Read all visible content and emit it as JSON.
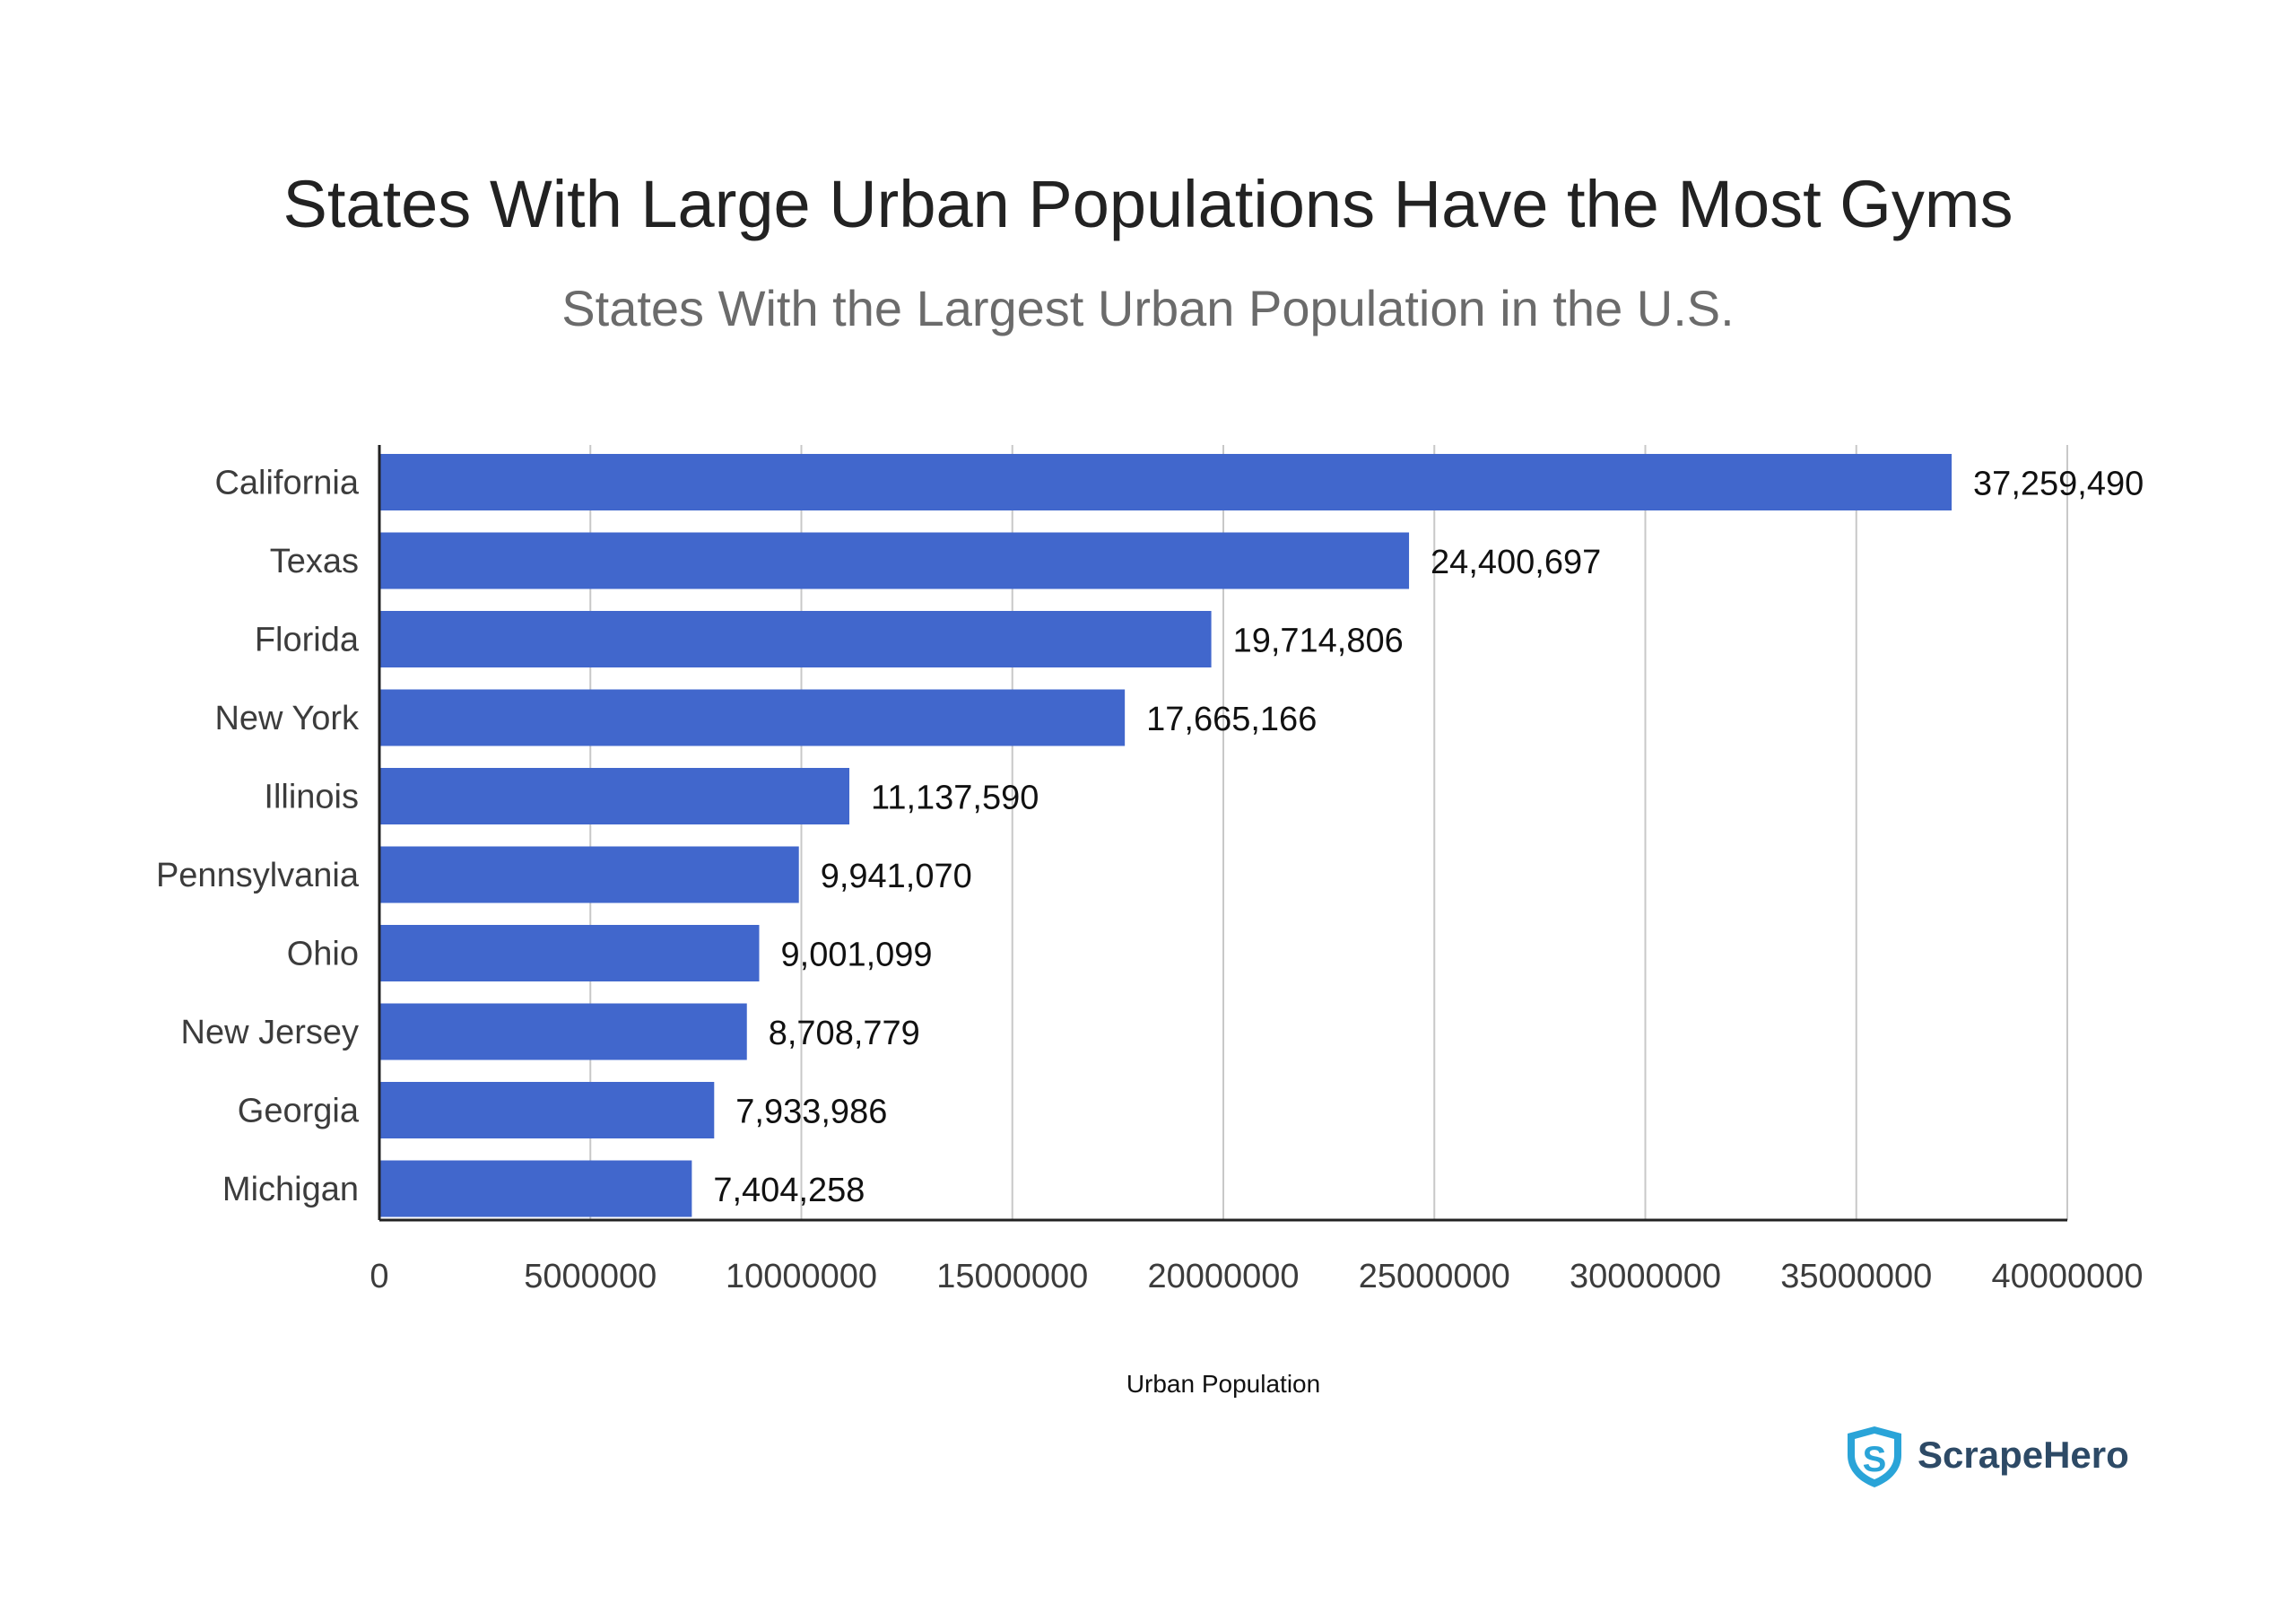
{
  "chart_data": {
    "type": "bar",
    "orientation": "horizontal",
    "title": "States With Large Urban Populations Have the Most Gyms",
    "subtitle": "States With the Largest Urban Population in the U.S.",
    "xlabel": "Urban Population",
    "ylabel": "",
    "xlim": [
      0,
      40000000
    ],
    "x_ticks": [
      "0",
      "5000000",
      "10000000",
      "15000000",
      "20000000",
      "25000000",
      "30000000",
      "35000000",
      "40000000"
    ],
    "x_tick_values": [
      0,
      5000000,
      10000000,
      15000000,
      20000000,
      25000000,
      30000000,
      35000000,
      40000000
    ],
    "grid": "vertical",
    "legend": "none",
    "bar_color": "#4167cc",
    "categories": [
      "California",
      "Texas",
      "Florida",
      "New York",
      "Illinois",
      "Pennsylvania",
      "Ohio",
      "New Jersey",
      "Georgia",
      "Michigan"
    ],
    "values": [
      37259490,
      24400697,
      19714806,
      17665166,
      11137590,
      9941070,
      9001099,
      8708779,
      7933986,
      7404258
    ],
    "value_labels": [
      "37,259,490",
      "24,400,697",
      "19,714,806",
      "17,665,166",
      "11,137,590",
      "9,941,070",
      "9,001,099",
      "8,708,779",
      "7,933,986",
      "7,404,258"
    ]
  },
  "brand": {
    "name": "ScrapeHero",
    "icon": "shield-s-logo-icon",
    "color": "#2d4a66",
    "accent": "#2aa4d8"
  }
}
